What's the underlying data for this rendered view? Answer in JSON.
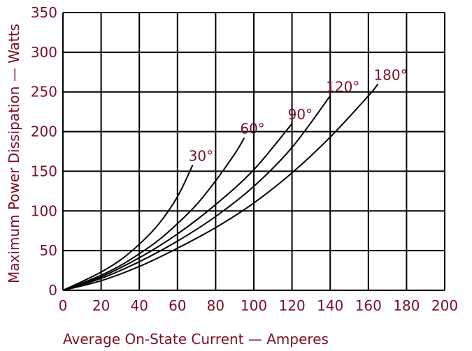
{
  "chart_data": {
    "type": "line",
    "xlabel": "Average On-State Current — Amperes",
    "ylabel": "Maximum Power Dissipation — Watts",
    "xlim": [
      0,
      200
    ],
    "ylim": [
      0,
      350
    ],
    "x_ticks": [
      "0",
      "20",
      "40",
      "60",
      "80",
      "100",
      "120",
      "140",
      "160",
      "180",
      "200"
    ],
    "y_ticks": [
      "0",
      "50",
      "100",
      "150",
      "200",
      "250",
      "300",
      "350"
    ],
    "grid": true,
    "legend": "none",
    "series": [
      {
        "name": "30°",
        "x": [
          0,
          10,
          20,
          30,
          40,
          50,
          60,
          68
        ],
        "y": [
          0,
          11,
          23,
          38,
          58,
          83,
          118,
          158
        ]
      },
      {
        "name": "60°",
        "x": [
          0,
          10,
          20,
          30,
          40,
          50,
          60,
          70,
          80,
          90,
          95
        ],
        "y": [
          0,
          9,
          19,
          31,
          46,
          63,
          84,
          108,
          138,
          172,
          192
        ]
      },
      {
        "name": "90°",
        "x": [
          0,
          20,
          40,
          60,
          80,
          100,
          120
        ],
        "y": [
          0,
          17,
          41,
          71,
          108,
          152,
          210
        ]
      },
      {
        "name": "120°",
        "x": [
          0,
          20,
          40,
          60,
          80,
          100,
          120,
          140
        ],
        "y": [
          0,
          15,
          36,
          62,
          93,
          131,
          180,
          245
        ]
      },
      {
        "name": "180°",
        "x": [
          0,
          20,
          40,
          60,
          80,
          100,
          120,
          140,
          160,
          165
        ],
        "y": [
          0,
          12,
          30,
          53,
          79,
          110,
          148,
          193,
          245,
          260
        ]
      }
    ]
  },
  "style": {
    "text_color": "#7a0f24",
    "grid_color": "#000000",
    "curve_color": "#000000",
    "background": "#ffffff"
  }
}
